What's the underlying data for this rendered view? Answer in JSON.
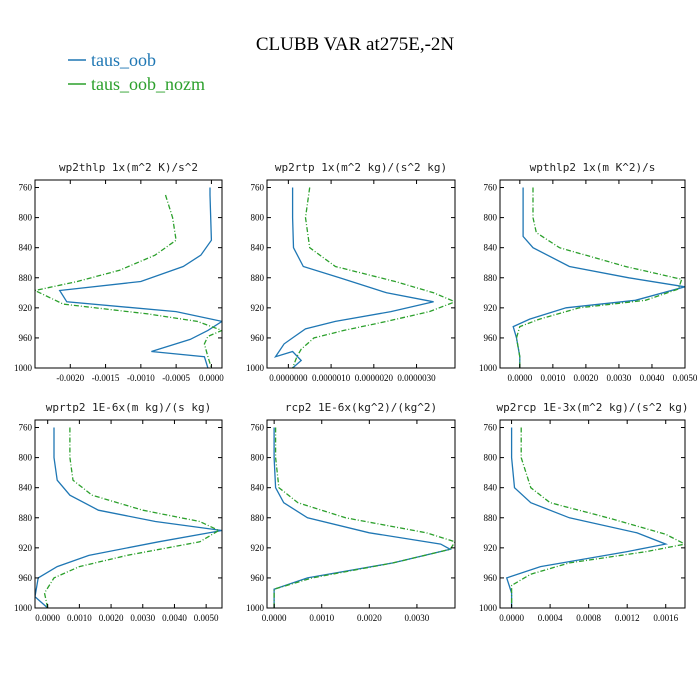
{
  "figure": {
    "title": "CLUBB VAR at275E,-2N",
    "legend": [
      {
        "label": "taus_oob",
        "color": "#1f77b4"
      },
      {
        "label": "taus_oob_nozm",
        "color": "#2ca02c"
      }
    ]
  },
  "chart_data": [
    {
      "type": "line",
      "title": "wp2thlp  1x(m^2 K)/s^2",
      "ylim": [
        1000,
        750
      ],
      "xlim": [
        -0.0025,
        0.00015
      ],
      "yticks": [
        760,
        800,
        840,
        880,
        920,
        960,
        1000
      ],
      "xticks": [
        -0.002,
        -0.0015,
        -0.001,
        -0.0005,
        0.0
      ],
      "xtick_labels": [
        "-0.0020",
        "-0.0015",
        "-0.0010",
        "-0.0005",
        "0.0000"
      ],
      "series": [
        {
          "name": "taus_oob",
          "color": "#1f77b4",
          "dash": "",
          "points": [
            [
              -2e-05,
              760
            ],
            [
              -2e-05,
              770
            ],
            [
              -1e-05,
              800
            ],
            [
              0.0,
              830
            ],
            [
              -0.00015,
              850
            ],
            [
              -0.0004,
              865
            ],
            [
              -0.001,
              885
            ],
            [
              -0.00215,
              897
            ],
            [
              -0.00205,
              912
            ],
            [
              -0.0005,
              925
            ],
            [
              0.00015,
              938
            ],
            [
              -5e-05,
              950
            ],
            [
              -0.0003,
              962
            ],
            [
              -0.00085,
              978
            ],
            [
              -0.0001,
              985
            ],
            [
              -5e-05,
              1000
            ]
          ]
        },
        {
          "name": "taus_oob_nozm",
          "color": "#2ca02c",
          "dash": "5,2,1,2",
          "points": [
            [
              -0.00065,
              770
            ],
            [
              -0.00055,
              800
            ],
            [
              -0.0005,
              830
            ],
            [
              -0.0008,
              850
            ],
            [
              -0.0013,
              870
            ],
            [
              -0.0019,
              885
            ],
            [
              -0.0025,
              897
            ],
            [
              -0.0021,
              915
            ],
            [
              -0.0009,
              928
            ],
            [
              -0.0002,
              938
            ],
            [
              0.00015,
              950
            ],
            [
              -5e-05,
              958
            ],
            [
              -0.0001,
              968
            ],
            [
              -5e-05,
              985
            ],
            [
              0.0,
              1000
            ]
          ]
        }
      ]
    },
    {
      "type": "line",
      "title": "wp2rtp  1x(m^2 kg)/(s^2 kg)",
      "ylim": [
        1000,
        750
      ],
      "xlim": [
        -5e-07,
        3.9e-06
      ],
      "yticks": [
        760,
        800,
        840,
        880,
        920,
        960,
        1000
      ],
      "xticks": [
        0.0,
        1e-06,
        2e-06,
        3e-06
      ],
      "xtick_labels": [
        "0.0000000",
        "0.0000010",
        "0.0000020",
        "0.0000030"
      ],
      "series": [
        {
          "name": "taus_oob",
          "color": "#1f77b4",
          "dash": "",
          "points": [
            [
              1e-07,
              760
            ],
            [
              1e-07,
              800
            ],
            [
              1.2e-07,
              840
            ],
            [
              3.5e-07,
              865
            ],
            [
              1.2e-06,
              880
            ],
            [
              2.3e-06,
              900
            ],
            [
              3.4e-06,
              912
            ],
            [
              2.4e-06,
              925
            ],
            [
              1.1e-06,
              938
            ],
            [
              4e-07,
              948
            ],
            [
              1e-07,
              960
            ],
            [
              -1e-07,
              968
            ],
            [
              -3e-07,
              985
            ],
            [
              1e-07,
              978
            ],
            [
              3e-07,
              990
            ],
            [
              1e-07,
              1000
            ]
          ]
        },
        {
          "name": "taus_oob_nozm",
          "color": "#2ca02c",
          "dash": "5,2,1,2",
          "points": [
            [
              5e-07,
              760
            ],
            [
              4e-07,
              800
            ],
            [
              5e-07,
              840
            ],
            [
              1.1e-06,
              865
            ],
            [
              2.5e-06,
              885
            ],
            [
              3.4e-06,
              900
            ],
            [
              3.9e-06,
              912
            ],
            [
              3.3e-06,
              925
            ],
            [
              2.3e-06,
              938
            ],
            [
              1.3e-06,
              950
            ],
            [
              6e-07,
              960
            ],
            [
              3e-07,
              975
            ],
            [
              2e-07,
              985
            ],
            [
              1e-07,
              1000
            ]
          ]
        }
      ]
    },
    {
      "type": "line",
      "title": "wpthlp2  1x(m K^2)/s",
      "ylim": [
        1000,
        750
      ],
      "xlim": [
        -0.0006,
        0.005
      ],
      "yticks": [
        760,
        800,
        840,
        880,
        920,
        960,
        1000
      ],
      "xticks": [
        0.0,
        0.001,
        0.002,
        0.003,
        0.004,
        0.005
      ],
      "xtick_labels": [
        "0.0000",
        "0.0010",
        "0.0020",
        "0.0030",
        "0.0040",
        "0.0050"
      ],
      "series": [
        {
          "name": "taus_oob",
          "color": "#1f77b4",
          "dash": "",
          "points": [
            [
              0.0001,
              760
            ],
            [
              0.0001,
              800
            ],
            [
              0.0001,
              825
            ],
            [
              0.0004,
              840
            ],
            [
              0.0015,
              865
            ],
            [
              0.0033,
              880
            ],
            [
              0.005,
              892
            ],
            [
              0.0035,
              910
            ],
            [
              0.0014,
              920
            ],
            [
              0.0003,
              935
            ],
            [
              -0.0002,
              945
            ],
            [
              -0.0001,
              960
            ],
            [
              0.0,
              985
            ],
            [
              0.0,
              1000
            ]
          ]
        },
        {
          "name": "taus_oob_nozm",
          "color": "#2ca02c",
          "dash": "5,2,1,2",
          "points": [
            [
              0.0004,
              760
            ],
            [
              0.0004,
              800
            ],
            [
              0.0005,
              820
            ],
            [
              0.0012,
              840
            ],
            [
              0.0032,
              865
            ],
            [
              0.0049,
              882
            ],
            [
              0.0048,
              895
            ],
            [
              0.0038,
              910
            ],
            [
              0.0018,
              920
            ],
            [
              0.0006,
              935
            ],
            [
              0.0,
              945
            ],
            [
              -0.0001,
              960
            ],
            [
              0.0,
              985
            ],
            [
              0.0,
              1000
            ]
          ]
        }
      ]
    },
    {
      "type": "line",
      "title": "wprtp2  1E-6x(m kg)/(s kg)",
      "ylim": [
        1000,
        750
      ],
      "xlim": [
        -0.0004,
        0.0055
      ],
      "yticks": [
        760,
        800,
        840,
        880,
        920,
        960,
        1000
      ],
      "xticks": [
        0.0,
        0.001,
        0.002,
        0.003,
        0.004,
        0.005
      ],
      "xtick_labels": [
        "0.0000",
        "0.0010",
        "0.0020",
        "0.0030",
        "0.0040",
        "0.0050"
      ],
      "series": [
        {
          "name": "taus_oob",
          "color": "#1f77b4",
          "dash": "",
          "points": [
            [
              0.0002,
              760
            ],
            [
              0.0002,
              800
            ],
            [
              0.0003,
              830
            ],
            [
              0.0007,
              850
            ],
            [
              0.0016,
              870
            ],
            [
              0.0034,
              885
            ],
            [
              0.0055,
              897
            ],
            [
              0.0035,
              912
            ],
            [
              0.0013,
              930
            ],
            [
              0.0003,
              945
            ],
            [
              -0.0003,
              960
            ],
            [
              -0.0004,
              985
            ],
            [
              0.0,
              1000
            ]
          ]
        },
        {
          "name": "taus_oob_nozm",
          "color": "#2ca02c",
          "dash": "5,2,1,2",
          "points": [
            [
              0.0007,
              760
            ],
            [
              0.0007,
              800
            ],
            [
              0.0008,
              830
            ],
            [
              0.0014,
              850
            ],
            [
              0.003,
              870
            ],
            [
              0.0048,
              885
            ],
            [
              0.0054,
              897
            ],
            [
              0.0048,
              912
            ],
            [
              0.0025,
              930
            ],
            [
              0.001,
              945
            ],
            [
              0.0002,
              960
            ],
            [
              -0.0001,
              980
            ],
            [
              0.0,
              1000
            ]
          ]
        }
      ]
    },
    {
      "type": "line",
      "title": "rcp2  1E-6x(kg^2)/(kg^2)",
      "ylim": [
        1000,
        750
      ],
      "xlim": [
        -0.00015,
        0.0038
      ],
      "yticks": [
        760,
        800,
        840,
        880,
        920,
        960,
        1000
      ],
      "xticks": [
        0.0,
        0.001,
        0.002,
        0.003
      ],
      "xtick_labels": [
        "0.0000",
        "0.0010",
        "0.0020",
        "0.0030"
      ],
      "series": [
        {
          "name": "taus_oob",
          "color": "#1f77b4",
          "dash": "",
          "points": [
            [
              0.0,
              760
            ],
            [
              0.0,
              800
            ],
            [
              3e-05,
              840
            ],
            [
              0.0002,
              860
            ],
            [
              0.0007,
              880
            ],
            [
              0.002,
              900
            ],
            [
              0.0035,
              915
            ],
            [
              0.0037,
              922
            ],
            [
              0.0025,
              940
            ],
            [
              0.0007,
              960
            ],
            [
              0.0,
              975
            ],
            [
              0.0,
              1000
            ]
          ]
        },
        {
          "name": "taus_oob_nozm",
          "color": "#2ca02c",
          "dash": "5,2,1,2",
          "points": [
            [
              3e-05,
              760
            ],
            [
              3e-05,
              800
            ],
            [
              0.0001,
              840
            ],
            [
              0.0005,
              860
            ],
            [
              0.0015,
              880
            ],
            [
              0.0032,
              900
            ],
            [
              0.0038,
              912
            ],
            [
              0.0037,
              922
            ],
            [
              0.0025,
              940
            ],
            [
              0.0008,
              960
            ],
            [
              0.0,
              975
            ],
            [
              0.0,
              1000
            ]
          ]
        }
      ]
    },
    {
      "type": "line",
      "title": "wp2rcp  1E-3x(m^2 kg)/(s^2 kg)",
      "ylim": [
        1000,
        750
      ],
      "xlim": [
        -0.00012,
        0.0018
      ],
      "yticks": [
        760,
        800,
        840,
        880,
        920,
        960,
        1000
      ],
      "xticks": [
        0.0,
        0.0004,
        0.0008,
        0.0012,
        0.0016
      ],
      "xtick_labels": [
        "0.0000",
        "0.0004",
        "0.0008",
        "0.0012",
        "0.0016"
      ],
      "series": [
        {
          "name": "taus_oob",
          "color": "#1f77b4",
          "dash": "",
          "points": [
            [
              0.0,
              760
            ],
            [
              0.0,
              800
            ],
            [
              3e-05,
              840
            ],
            [
              0.0002,
              860
            ],
            [
              0.0006,
              880
            ],
            [
              0.0013,
              900
            ],
            [
              0.0016,
              915
            ],
            [
              0.0012,
              925
            ],
            [
              0.0003,
              945
            ],
            [
              -5e-05,
              960
            ],
            [
              0.0,
              980
            ],
            [
              0.0,
              1000
            ]
          ]
        },
        {
          "name": "taus_oob_nozm",
          "color": "#2ca02c",
          "dash": "5,2,1,2",
          "points": [
            [
              0.0001,
              760
            ],
            [
              0.0001,
              800
            ],
            [
              0.0002,
              840
            ],
            [
              0.0004,
              860
            ],
            [
              0.001,
              880
            ],
            [
              0.0016,
              902
            ],
            [
              0.0018,
              915
            ],
            [
              0.0014,
              925
            ],
            [
              0.0006,
              940
            ],
            [
              0.0002,
              955
            ],
            [
              0.0,
              970
            ],
            [
              0.0,
              1000
            ]
          ]
        }
      ]
    }
  ]
}
